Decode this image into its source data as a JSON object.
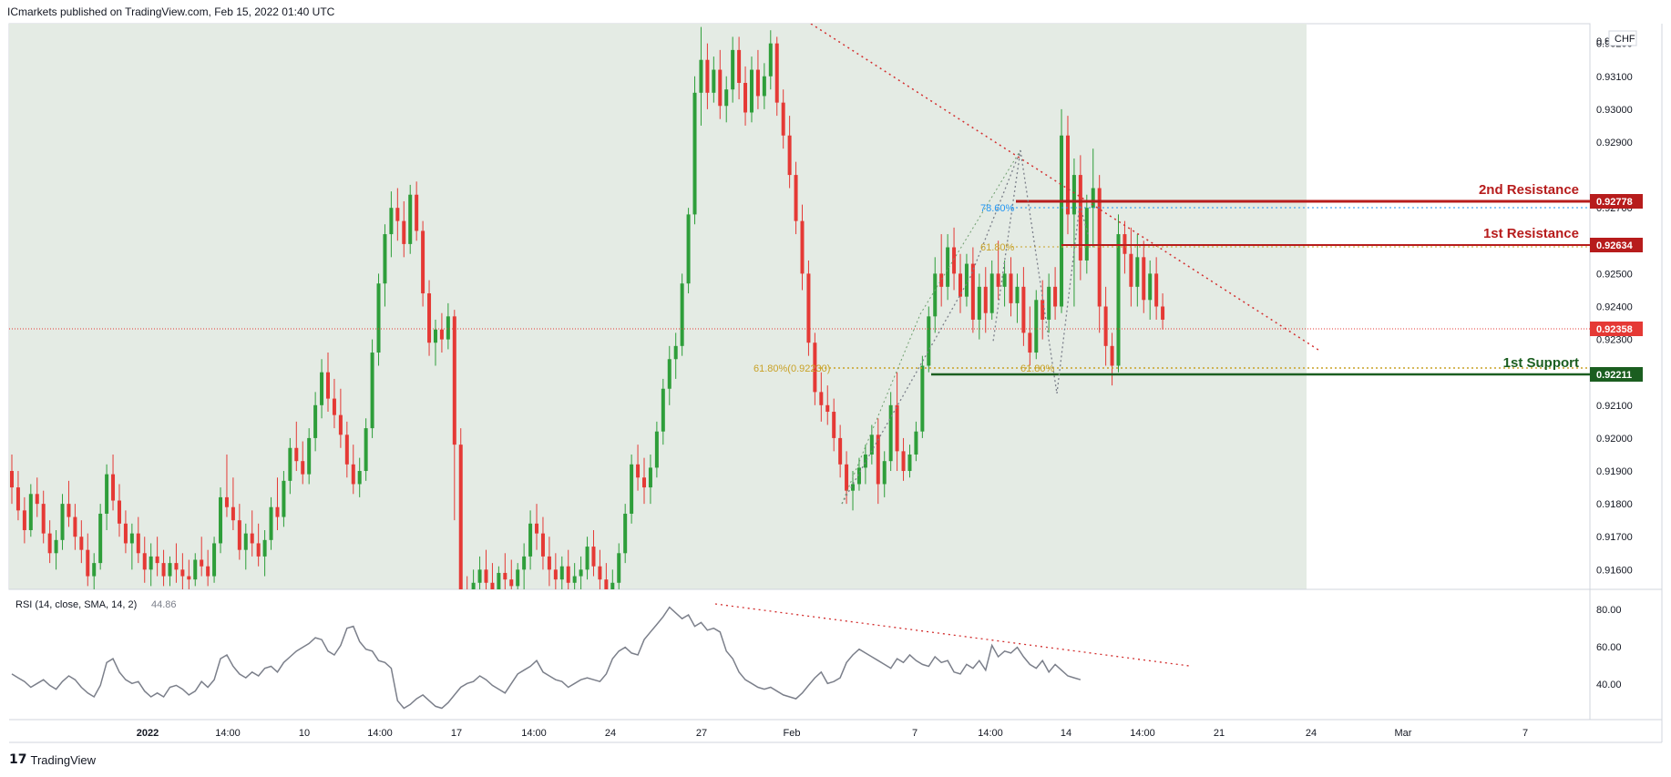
{
  "header": {
    "publisher": "ICmarkets published on TradingView.com, Feb 15, 2022 01:40 UTC"
  },
  "footer": {
    "brand": "TradingView"
  },
  "price_panel": {
    "currency": "CHF",
    "top_partial_label": "0.9",
    "y_ticks": [
      "0.93200",
      "0.93100",
      "0.93000",
      "0.92900",
      "0.92700",
      "0.92600",
      "0.92500",
      "0.92400",
      "0.92300",
      "0.92100",
      "0.92000",
      "0.91900",
      "0.91800",
      "0.91700",
      "0.91600"
    ],
    "current_price": "0.92358",
    "levels": [
      {
        "label": "2nd Resistance",
        "value": "0.92778",
        "color": "#b71c1c"
      },
      {
        "label": "1st Resistance",
        "value": "0.92634",
        "color": "#b71c1c"
      },
      {
        "label": "1st Support",
        "value": "0.92211",
        "color": "#1b5e20"
      }
    ],
    "fib_labels": {
      "f786": "78.60%",
      "f618_upper": "61.80%",
      "f618_left": "61.80%(0.92230)",
      "f618_lower": "61.80%"
    }
  },
  "rsi_panel": {
    "label": "RSI (14, close, SMA, 14, 2)",
    "value": "44.86",
    "y_ticks": [
      "80.00",
      "60.00",
      "40.00"
    ]
  },
  "x_axis": {
    "ticks": [
      "2022",
      "14:00",
      "10",
      "14:00",
      "17",
      "14:00",
      "24",
      "27",
      "Feb",
      "7",
      "14:00",
      "14",
      "14:00",
      "21",
      "24",
      "Mar",
      "7"
    ]
  },
  "colors": {
    "up": "#26a69a",
    "up_green": "#2e9e3a",
    "down": "#e53935",
    "zone": "#e3eae3",
    "rsi_line": "#7b7f8a"
  },
  "chart_data": {
    "type": "candlestick",
    "title": "",
    "instrument_currency": "CHF",
    "price_ylim": [
      0.9154,
      0.9326
    ],
    "rsi_ylim": [
      25,
      90
    ],
    "candles": [
      [
        0.919,
        0.9195,
        0.918,
        0.9185
      ],
      [
        0.9185,
        0.919,
        0.9175,
        0.9178
      ],
      [
        0.9178,
        0.9182,
        0.9168,
        0.9172
      ],
      [
        0.9172,
        0.9186,
        0.917,
        0.9183
      ],
      [
        0.9183,
        0.9188,
        0.9176,
        0.918
      ],
      [
        0.918,
        0.9184,
        0.9168,
        0.9171
      ],
      [
        0.9171,
        0.9175,
        0.9162,
        0.9165
      ],
      [
        0.9165,
        0.9172,
        0.916,
        0.9169
      ],
      [
        0.9169,
        0.9183,
        0.9166,
        0.918
      ],
      [
        0.918,
        0.9187,
        0.9173,
        0.9176
      ],
      [
        0.9176,
        0.918,
        0.9166,
        0.917
      ],
      [
        0.917,
        0.9175,
        0.9162,
        0.9166
      ],
      [
        0.9166,
        0.9171,
        0.9155,
        0.9158
      ],
      [
        0.9158,
        0.9165,
        0.9154,
        0.9162
      ],
      [
        0.9162,
        0.918,
        0.916,
        0.9177
      ],
      [
        0.9177,
        0.9192,
        0.9172,
        0.9189
      ],
      [
        0.9189,
        0.9195,
        0.9178,
        0.9181
      ],
      [
        0.9181,
        0.9186,
        0.917,
        0.9174
      ],
      [
        0.9174,
        0.9178,
        0.9165,
        0.9168
      ],
      [
        0.9168,
        0.9174,
        0.916,
        0.9171
      ],
      [
        0.9171,
        0.9176,
        0.9162,
        0.9165
      ],
      [
        0.9165,
        0.917,
        0.9156,
        0.916
      ],
      [
        0.916,
        0.9168,
        0.9155,
        0.9164
      ],
      [
        0.9164,
        0.917,
        0.9158,
        0.9162
      ],
      [
        0.9162,
        0.9166,
        0.9155,
        0.9158
      ],
      [
        0.9158,
        0.9164,
        0.9155,
        0.9162
      ],
      [
        0.9162,
        0.9168,
        0.9156,
        0.916
      ],
      [
        0.916,
        0.9165,
        0.9154,
        0.9158
      ],
      [
        0.9158,
        0.9163,
        0.9154,
        0.9157
      ],
      [
        0.9157,
        0.9165,
        0.9155,
        0.9163
      ],
      [
        0.9163,
        0.917,
        0.9158,
        0.9161
      ],
      [
        0.9161,
        0.9166,
        0.9155,
        0.9158
      ],
      [
        0.9158,
        0.917,
        0.9156,
        0.9168
      ],
      [
        0.9168,
        0.9185,
        0.9165,
        0.9182
      ],
      [
        0.9182,
        0.9195,
        0.9176,
        0.9179
      ],
      [
        0.9179,
        0.9188,
        0.9172,
        0.9175
      ],
      [
        0.9175,
        0.918,
        0.9163,
        0.9166
      ],
      [
        0.9166,
        0.9174,
        0.916,
        0.9171
      ],
      [
        0.9171,
        0.9178,
        0.9164,
        0.9168
      ],
      [
        0.9168,
        0.9174,
        0.9161,
        0.9164
      ],
      [
        0.9164,
        0.9172,
        0.9158,
        0.9169
      ],
      [
        0.9169,
        0.9182,
        0.9166,
        0.9179
      ],
      [
        0.9179,
        0.9188,
        0.9172,
        0.9176
      ],
      [
        0.9176,
        0.919,
        0.9173,
        0.9187
      ],
      [
        0.9187,
        0.92,
        0.9183,
        0.9197
      ],
      [
        0.9197,
        0.9205,
        0.919,
        0.9193
      ],
      [
        0.9193,
        0.9199,
        0.9186,
        0.9189
      ],
      [
        0.9189,
        0.9203,
        0.9186,
        0.92
      ],
      [
        0.92,
        0.9214,
        0.9196,
        0.921
      ],
      [
        0.921,
        0.9224,
        0.9206,
        0.922
      ],
      [
        0.922,
        0.9226,
        0.9208,
        0.9212
      ],
      [
        0.9212,
        0.9218,
        0.9203,
        0.9207
      ],
      [
        0.9207,
        0.9215,
        0.9197,
        0.9201
      ],
      [
        0.9201,
        0.9205,
        0.9188,
        0.9192
      ],
      [
        0.9192,
        0.9198,
        0.9183,
        0.9186
      ],
      [
        0.9186,
        0.9194,
        0.9182,
        0.919
      ],
      [
        0.919,
        0.9206,
        0.9187,
        0.9203
      ],
      [
        0.9203,
        0.923,
        0.92,
        0.9226
      ],
      [
        0.9226,
        0.925,
        0.9222,
        0.9247
      ],
      [
        0.9247,
        0.9265,
        0.924,
        0.9262
      ],
      [
        0.9262,
        0.9275,
        0.9255,
        0.927
      ],
      [
        0.927,
        0.9276,
        0.926,
        0.9266
      ],
      [
        0.9266,
        0.9272,
        0.9255,
        0.9259
      ],
      [
        0.9259,
        0.9277,
        0.9256,
        0.9274
      ],
      [
        0.9274,
        0.9278,
        0.926,
        0.9263
      ],
      [
        0.9263,
        0.9266,
        0.924,
        0.9244
      ],
      [
        0.9244,
        0.9248,
        0.9225,
        0.9229
      ],
      [
        0.9229,
        0.9236,
        0.9222,
        0.9233
      ],
      [
        0.9233,
        0.9238,
        0.9226,
        0.923
      ],
      [
        0.923,
        0.9241,
        0.9227,
        0.9237
      ],
      [
        0.9237,
        0.9239,
        0.9175,
        0.9198
      ],
      [
        0.9198,
        0.9203,
        0.914,
        0.915
      ],
      [
        0.915,
        0.9158,
        0.9135,
        0.9148
      ],
      [
        0.9148,
        0.916,
        0.9143,
        0.9156
      ],
      [
        0.9156,
        0.9164,
        0.915,
        0.916
      ],
      [
        0.916,
        0.9166,
        0.9152,
        0.9156
      ],
      [
        0.9156,
        0.9162,
        0.915,
        0.9154
      ],
      [
        0.9154,
        0.9161,
        0.915,
        0.9159
      ],
      [
        0.9159,
        0.9165,
        0.9153,
        0.9157
      ],
      [
        0.9157,
        0.9163,
        0.915,
        0.9155
      ],
      [
        0.9155,
        0.9162,
        0.915,
        0.916
      ],
      [
        0.916,
        0.9168,
        0.9154,
        0.9164
      ],
      [
        0.9164,
        0.9178,
        0.916,
        0.9174
      ],
      [
        0.9174,
        0.918,
        0.9166,
        0.9171
      ],
      [
        0.9171,
        0.9176,
        0.916,
        0.9164
      ],
      [
        0.9164,
        0.917,
        0.9155,
        0.916
      ],
      [
        0.916,
        0.9165,
        0.9152,
        0.9157
      ],
      [
        0.9157,
        0.9164,
        0.9154,
        0.9161
      ],
      [
        0.9161,
        0.9166,
        0.9152,
        0.9156
      ],
      [
        0.9156,
        0.9162,
        0.9152,
        0.9158
      ],
      [
        0.9158,
        0.9164,
        0.9153,
        0.916
      ],
      [
        0.916,
        0.917,
        0.9157,
        0.9167
      ],
      [
        0.9167,
        0.9172,
        0.9158,
        0.9161
      ],
      [
        0.9161,
        0.9166,
        0.9153,
        0.9157
      ],
      [
        0.9157,
        0.9162,
        0.915,
        0.9154
      ],
      [
        0.9154,
        0.916,
        0.9148,
        0.9156
      ],
      [
        0.9156,
        0.9168,
        0.9154,
        0.9165
      ],
      [
        0.9165,
        0.918,
        0.9162,
        0.9177
      ],
      [
        0.9177,
        0.9195,
        0.9174,
        0.9192
      ],
      [
        0.9192,
        0.9198,
        0.9184,
        0.9188
      ],
      [
        0.9188,
        0.9194,
        0.918,
        0.9185
      ],
      [
        0.9185,
        0.9195,
        0.918,
        0.9191
      ],
      [
        0.9191,
        0.9205,
        0.9188,
        0.9202
      ],
      [
        0.9202,
        0.9218,
        0.9198,
        0.9215
      ],
      [
        0.9215,
        0.9228,
        0.921,
        0.9224
      ],
      [
        0.9224,
        0.9232,
        0.9218,
        0.9228
      ],
      [
        0.9228,
        0.925,
        0.9225,
        0.9247
      ],
      [
        0.9247,
        0.927,
        0.9244,
        0.9268
      ],
      [
        0.9268,
        0.931,
        0.9265,
        0.9305
      ],
      [
        0.9305,
        0.9325,
        0.9295,
        0.9315
      ],
      [
        0.9315,
        0.932,
        0.93,
        0.9305
      ],
      [
        0.9305,
        0.9316,
        0.9302,
        0.9312
      ],
      [
        0.9312,
        0.9318,
        0.9297,
        0.9301
      ],
      [
        0.9301,
        0.931,
        0.9296,
        0.9306
      ],
      [
        0.9306,
        0.9322,
        0.9302,
        0.9318
      ],
      [
        0.9318,
        0.9322,
        0.9303,
        0.9308
      ],
      [
        0.9308,
        0.9313,
        0.9295,
        0.9299
      ],
      [
        0.9299,
        0.9316,
        0.9296,
        0.9312
      ],
      [
        0.9312,
        0.9318,
        0.93,
        0.9304
      ],
      [
        0.9304,
        0.9314,
        0.93,
        0.931
      ],
      [
        0.931,
        0.9324,
        0.9306,
        0.932
      ],
      [
        0.932,
        0.9322,
        0.9298,
        0.9302
      ],
      [
        0.9302,
        0.9306,
        0.9288,
        0.9292
      ],
      [
        0.9292,
        0.9298,
        0.9276,
        0.928
      ],
      [
        0.928,
        0.9284,
        0.9262,
        0.9266
      ],
      [
        0.9266,
        0.9271,
        0.9245,
        0.925
      ],
      [
        0.925,
        0.9254,
        0.9225,
        0.9229
      ],
      [
        0.9229,
        0.9232,
        0.921,
        0.9214
      ],
      [
        0.9214,
        0.922,
        0.9205,
        0.921
      ],
      [
        0.921,
        0.9216,
        0.9204,
        0.9208
      ],
      [
        0.9208,
        0.9212,
        0.9196,
        0.92
      ],
      [
        0.92,
        0.9204,
        0.9188,
        0.9192
      ],
      [
        0.9192,
        0.9196,
        0.918,
        0.9184
      ],
      [
        0.9184,
        0.919,
        0.9178,
        0.9186
      ],
      [
        0.9186,
        0.9194,
        0.9184,
        0.9191
      ],
      [
        0.9191,
        0.9198,
        0.9186,
        0.9195
      ],
      [
        0.9195,
        0.9204,
        0.9192,
        0.9201
      ],
      [
        0.9201,
        0.9206,
        0.918,
        0.9186
      ],
      [
        0.9186,
        0.9196,
        0.9182,
        0.9193
      ],
      [
        0.9193,
        0.9214,
        0.919,
        0.921
      ],
      [
        0.921,
        0.922,
        0.919,
        0.9196
      ],
      [
        0.9196,
        0.92,
        0.9187,
        0.919
      ],
      [
        0.919,
        0.9198,
        0.9188,
        0.9195
      ],
      [
        0.9195,
        0.9205,
        0.9193,
        0.9202
      ],
      [
        0.9202,
        0.9225,
        0.92,
        0.9222
      ],
      [
        0.9222,
        0.924,
        0.922,
        0.9237
      ],
      [
        0.9237,
        0.9255,
        0.9232,
        0.925
      ],
      [
        0.925,
        0.9262,
        0.924,
        0.9246
      ],
      [
        0.9246,
        0.9262,
        0.9242,
        0.9258
      ],
      [
        0.9258,
        0.9264,
        0.9245,
        0.925
      ],
      [
        0.925,
        0.9256,
        0.9238,
        0.9243
      ],
      [
        0.9243,
        0.9256,
        0.924,
        0.9253
      ],
      [
        0.9253,
        0.9258,
        0.9232,
        0.9236
      ],
      [
        0.9236,
        0.925,
        0.923,
        0.9246
      ],
      [
        0.9246,
        0.9252,
        0.9232,
        0.9238
      ],
      [
        0.9238,
        0.9254,
        0.9236,
        0.925
      ],
      [
        0.925,
        0.926,
        0.9242,
        0.9246
      ],
      [
        0.9246,
        0.9254,
        0.924,
        0.925
      ],
      [
        0.925,
        0.9255,
        0.9237,
        0.9241
      ],
      [
        0.9241,
        0.925,
        0.9235,
        0.9246
      ],
      [
        0.9246,
        0.9252,
        0.9228,
        0.9232
      ],
      [
        0.9232,
        0.924,
        0.9222,
        0.9226
      ],
      [
        0.9226,
        0.9245,
        0.9224,
        0.9242
      ],
      [
        0.9242,
        0.9248,
        0.923,
        0.9236
      ],
      [
        0.9236,
        0.925,
        0.9232,
        0.9246
      ],
      [
        0.9246,
        0.9252,
        0.9236,
        0.924
      ],
      [
        0.924,
        0.93,
        0.9238,
        0.9292
      ],
      [
        0.9292,
        0.9298,
        0.9262,
        0.9268
      ],
      [
        0.9268,
        0.9285,
        0.924,
        0.928
      ],
      [
        0.928,
        0.9286,
        0.9248,
        0.9254
      ],
      [
        0.9254,
        0.9274,
        0.925,
        0.927
      ],
      [
        0.927,
        0.9288,
        0.9258,
        0.9276
      ],
      [
        0.9276,
        0.928,
        0.9232,
        0.924
      ],
      [
        0.924,
        0.9246,
        0.9222,
        0.9228
      ],
      [
        0.9228,
        0.9232,
        0.9216,
        0.9222
      ],
      [
        0.9222,
        0.9268,
        0.922,
        0.9262
      ],
      [
        0.9262,
        0.9266,
        0.925,
        0.9256
      ],
      [
        0.9256,
        0.9264,
        0.924,
        0.9246
      ],
      [
        0.9246,
        0.9262,
        0.924,
        0.9255
      ],
      [
        0.9255,
        0.926,
        0.9238,
        0.9242
      ],
      [
        0.9242,
        0.9254,
        0.9236,
        0.925
      ],
      [
        0.925,
        0.9255,
        0.9236,
        0.924
      ],
      [
        0.924,
        0.9244,
        0.9233,
        0.9236
      ]
    ],
    "rsi": [
      48,
      46,
      44,
      41,
      43,
      45,
      42,
      40,
      44,
      47,
      45,
      41,
      38,
      36,
      42,
      54,
      56,
      49,
      45,
      43,
      44,
      39,
      36,
      38,
      36,
      41,
      42,
      40,
      37,
      39,
      44,
      41,
      45,
      56,
      58,
      52,
      48,
      46,
      49,
      47,
      51,
      52,
      49,
      54,
      57,
      60,
      62,
      64,
      67,
      66,
      60,
      58,
      63,
      72,
      73,
      65,
      61,
      60,
      55,
      54,
      51,
      34,
      30,
      32,
      35,
      37,
      34,
      31,
      30,
      33,
      37,
      41,
      43,
      44,
      47,
      45,
      42,
      40,
      38,
      43,
      48,
      50,
      52,
      55,
      49,
      47,
      45,
      44,
      41,
      43,
      45,
      46,
      45,
      44,
      48,
      56,
      60,
      62,
      59,
      58,
      66,
      70,
      74,
      78,
      83,
      80,
      77,
      79,
      73,
      75,
      71,
      72,
      70,
      60,
      56,
      49,
      45,
      43,
      41,
      40,
      41,
      39,
      37,
      36,
      35,
      38,
      42,
      46,
      49,
      43,
      44,
      46,
      54,
      58,
      61,
      59,
      57,
      55,
      53,
      51,
      56,
      54,
      58,
      55,
      53,
      52,
      57,
      54,
      55,
      49,
      48,
      53,
      51,
      55,
      50,
      63,
      57,
      60,
      59,
      62,
      57,
      53,
      51,
      55,
      49,
      53,
      50,
      47,
      46,
      45
    ]
  }
}
